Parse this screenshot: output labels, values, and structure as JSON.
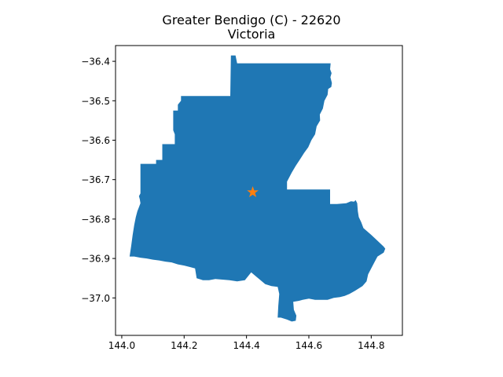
{
  "title": {
    "line1": "Greater Bendigo (C) - 22620",
    "line2": "Victoria"
  },
  "colors": {
    "region_fill": "#1f77b4",
    "marker": "#ff7f0e",
    "axis": "#000000",
    "background": "#ffffff"
  },
  "chart_data": {
    "type": "map",
    "title": "Greater Bendigo (C) - 22620\nVictoria",
    "xlabel": "",
    "ylabel": "",
    "xlim": [
      143.98,
      144.9
    ],
    "ylim": [
      -37.095,
      -36.36
    ],
    "grid": false,
    "x_ticks": [
      144.0,
      144.2,
      144.4,
      144.6,
      144.8
    ],
    "x_tick_labels": [
      "144.0",
      "144.2",
      "144.4",
      "144.6",
      "144.8"
    ],
    "y_ticks": [
      -36.4,
      -36.5,
      -36.6,
      -36.7,
      -36.8,
      -36.9,
      -37.0
    ],
    "y_tick_labels": [
      "−36.4",
      "−36.5",
      "−36.6",
      "−36.7",
      "−36.8",
      "−36.9",
      "−37.0"
    ],
    "region_polygon": [
      [
        144.35,
        -36.385
      ],
      [
        144.365,
        -36.385
      ],
      [
        144.37,
        -36.405
      ],
      [
        144.67,
        -36.405
      ],
      [
        144.668,
        -36.42
      ],
      [
        144.673,
        -36.43
      ],
      [
        144.669,
        -36.44
      ],
      [
        144.674,
        -36.455
      ],
      [
        144.672,
        -36.465
      ],
      [
        144.662,
        -36.47
      ],
      [
        144.66,
        -36.485
      ],
      [
        144.65,
        -36.5
      ],
      [
        144.645,
        -36.52
      ],
      [
        144.635,
        -36.535
      ],
      [
        144.636,
        -36.55
      ],
      [
        144.625,
        -36.565
      ],
      [
        144.62,
        -36.585
      ],
      [
        144.608,
        -36.6
      ],
      [
        144.598,
        -36.618
      ],
      [
        144.585,
        -36.632
      ],
      [
        144.572,
        -36.648
      ],
      [
        144.558,
        -36.665
      ],
      [
        144.545,
        -36.682
      ],
      [
        144.53,
        -36.705
      ],
      [
        144.53,
        -36.725
      ],
      [
        144.668,
        -36.725
      ],
      [
        144.668,
        -36.762
      ],
      [
        144.69,
        -36.762
      ],
      [
        144.72,
        -36.76
      ],
      [
        144.735,
        -36.755
      ],
      [
        144.745,
        -36.756
      ],
      [
        144.75,
        -36.752
      ],
      [
        144.755,
        -36.76
      ],
      [
        144.757,
        -36.78
      ],
      [
        144.76,
        -36.795
      ],
      [
        144.768,
        -36.808
      ],
      [
        144.775,
        -36.823
      ],
      [
        144.8,
        -36.84
      ],
      [
        144.82,
        -36.855
      ],
      [
        144.84,
        -36.87
      ],
      [
        144.845,
        -36.875
      ],
      [
        144.84,
        -36.885
      ],
      [
        144.82,
        -36.895
      ],
      [
        144.81,
        -36.91
      ],
      [
        144.8,
        -36.925
      ],
      [
        144.79,
        -36.94
      ],
      [
        144.785,
        -36.958
      ],
      [
        144.772,
        -36.97
      ],
      [
        144.748,
        -36.982
      ],
      [
        144.73,
        -36.99
      ],
      [
        144.715,
        -36.995
      ],
      [
        144.7,
        -36.998
      ],
      [
        144.68,
        -37.0
      ],
      [
        144.66,
        -37.005
      ],
      [
        144.64,
        -37.005
      ],
      [
        144.62,
        -37.005
      ],
      [
        144.6,
        -37.002
      ],
      [
        144.58,
        -37.005
      ],
      [
        144.565,
        -37.008
      ],
      [
        144.55,
        -37.01
      ],
      [
        144.552,
        -37.03
      ],
      [
        144.56,
        -37.045
      ],
      [
        144.558,
        -37.058
      ],
      [
        144.545,
        -37.06
      ],
      [
        144.53,
        -37.055
      ],
      [
        144.51,
        -37.05
      ],
      [
        144.5,
        -37.05
      ],
      [
        144.502,
        -37.02
      ],
      [
        144.505,
        -36.99
      ],
      [
        144.5,
        -36.972
      ],
      [
        144.48,
        -36.97
      ],
      [
        144.46,
        -36.965
      ],
      [
        144.445,
        -36.955
      ],
      [
        144.43,
        -36.945
      ],
      [
        144.415,
        -36.935
      ],
      [
        144.395,
        -36.955
      ],
      [
        144.37,
        -36.958
      ],
      [
        144.345,
        -36.955
      ],
      [
        144.3,
        -36.952
      ],
      [
        144.28,
        -36.955
      ],
      [
        144.26,
        -36.955
      ],
      [
        144.24,
        -36.95
      ],
      [
        144.235,
        -36.925
      ],
      [
        144.22,
        -36.922
      ],
      [
        144.2,
        -36.918
      ],
      [
        144.18,
        -36.915
      ],
      [
        144.16,
        -36.91
      ],
      [
        144.14,
        -36.908
      ],
      [
        144.12,
        -36.905
      ],
      [
        144.1,
        -36.903
      ],
      [
        144.08,
        -36.9
      ],
      [
        144.06,
        -36.898
      ],
      [
        144.04,
        -36.895
      ],
      [
        144.025,
        -36.895
      ],
      [
        144.03,
        -36.87
      ],
      [
        144.035,
        -36.84
      ],
      [
        144.04,
        -36.815
      ],
      [
        144.045,
        -36.795
      ],
      [
        144.05,
        -36.78
      ],
      [
        144.055,
        -36.77
      ],
      [
        144.06,
        -36.76
      ],
      [
        144.058,
        -36.75
      ],
      [
        144.055,
        -36.742
      ],
      [
        144.06,
        -36.735
      ],
      [
        144.06,
        -36.66
      ],
      [
        144.11,
        -36.66
      ],
      [
        144.11,
        -36.65
      ],
      [
        144.13,
        -36.65
      ],
      [
        144.13,
        -36.61
      ],
      [
        144.17,
        -36.61
      ],
      [
        144.17,
        -36.585
      ],
      [
        144.165,
        -36.575
      ],
      [
        144.165,
        -36.525
      ],
      [
        144.18,
        -36.525
      ],
      [
        144.18,
        -36.51
      ],
      [
        144.19,
        -36.5
      ],
      [
        144.19,
        -36.488
      ],
      [
        144.348,
        -36.488
      ]
    ],
    "marker_point": {
      "x": 144.42,
      "y": -36.732,
      "symbol": "star"
    }
  }
}
